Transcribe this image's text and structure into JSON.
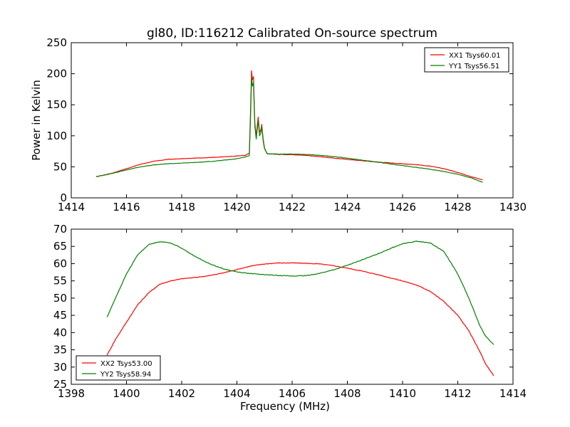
{
  "figure": {
    "title": "gl80, ID:116212 Calibrated On-source spectrum"
  },
  "chart_data": [
    {
      "type": "line",
      "title": "gl80, ID:116212 Calibrated On-source spectrum",
      "xlabel": "",
      "ylabel": "Power in Kelvin",
      "xlim": [
        1414,
        1430
      ],
      "ylim": [
        0,
        250
      ],
      "xticks": [
        "1414",
        "1416",
        "1418",
        "1420",
        "1422",
        "1424",
        "1426",
        "1428",
        "1430"
      ],
      "yticks": [
        "0",
        "50",
        "100",
        "150",
        "200",
        "250"
      ],
      "legend_position": "top-right",
      "grid": false,
      "series": [
        {
          "name": "XX1 Tsys60.01",
          "color": "#ff0000",
          "points": [
            [
              1414.9,
              34
            ],
            [
              1415.5,
              40
            ],
            [
              1416.0,
              47
            ],
            [
              1416.5,
              54
            ],
            [
              1417.0,
              59
            ],
            [
              1417.5,
              62
            ],
            [
              1418.0,
              63
            ],
            [
              1418.5,
              64
            ],
            [
              1419.0,
              65
            ],
            [
              1419.5,
              66
            ],
            [
              1420.0,
              67.5
            ],
            [
              1420.3,
              68.5
            ],
            [
              1420.45,
              72
            ],
            [
              1420.5,
              150
            ],
            [
              1420.53,
              205
            ],
            [
              1420.56,
              190
            ],
            [
              1420.6,
              195
            ],
            [
              1420.65,
              120
            ],
            [
              1420.7,
              100
            ],
            [
              1420.77,
              130
            ],
            [
              1420.82,
              105
            ],
            [
              1420.87,
              110
            ],
            [
              1420.9,
              118
            ],
            [
              1420.95,
              95
            ],
            [
              1421.0,
              80
            ],
            [
              1421.1,
              71
            ],
            [
              1421.5,
              70
            ],
            [
              1422.0,
              69.5
            ],
            [
              1422.5,
              68.5
            ],
            [
              1423.0,
              66.5
            ],
            [
              1423.5,
              64
            ],
            [
              1424.0,
              62
            ],
            [
              1424.5,
              60
            ],
            [
              1425.0,
              58
            ],
            [
              1425.5,
              56.5
            ],
            [
              1426.0,
              55
            ],
            [
              1426.5,
              53.5
            ],
            [
              1427.0,
              51
            ],
            [
              1427.5,
              47
            ],
            [
              1428.0,
              41
            ],
            [
              1428.5,
              34
            ],
            [
              1428.9,
              29
            ]
          ]
        },
        {
          "name": "YY1 Tsys56.51",
          "color": "#008000",
          "points": [
            [
              1414.9,
              34
            ],
            [
              1415.5,
              39.5
            ],
            [
              1416.0,
              45
            ],
            [
              1416.5,
              50
            ],
            [
              1417.0,
              53
            ],
            [
              1417.5,
              55
            ],
            [
              1418.0,
              56
            ],
            [
              1418.5,
              57
            ],
            [
              1419.0,
              58.5
            ],
            [
              1419.5,
              60.5
            ],
            [
              1420.0,
              63
            ],
            [
              1420.3,
              66
            ],
            [
              1420.45,
              68
            ],
            [
              1420.5,
              140
            ],
            [
              1420.53,
              195
            ],
            [
              1420.56,
              180
            ],
            [
              1420.6,
              185
            ],
            [
              1420.65,
              115
            ],
            [
              1420.7,
              95
            ],
            [
              1420.77,
              125
            ],
            [
              1420.82,
              100
            ],
            [
              1420.87,
              105
            ],
            [
              1420.9,
              115
            ],
            [
              1420.95,
              92
            ],
            [
              1421.0,
              79
            ],
            [
              1421.1,
              71
            ],
            [
              1421.5,
              70.5
            ],
            [
              1422.0,
              70.5
            ],
            [
              1422.5,
              70
            ],
            [
              1423.0,
              68.5
            ],
            [
              1423.5,
              66.5
            ],
            [
              1424.0,
              64
            ],
            [
              1424.5,
              61
            ],
            [
              1425.0,
              58
            ],
            [
              1425.5,
              55
            ],
            [
              1426.0,
              52
            ],
            [
              1426.5,
              49
            ],
            [
              1427.0,
              46
            ],
            [
              1427.5,
              42.5
            ],
            [
              1428.0,
              38
            ],
            [
              1428.5,
              32
            ],
            [
              1428.9,
              25
            ]
          ]
        }
      ]
    },
    {
      "type": "line",
      "title": "",
      "xlabel": "Frequency (MHz)",
      "ylabel": "",
      "xlim": [
        1398,
        1414
      ],
      "ylim": [
        25,
        70
      ],
      "xticks": [
        "1398",
        "1400",
        "1402",
        "1404",
        "1406",
        "1408",
        "1410",
        "1412",
        "1414"
      ],
      "yticks": [
        "25",
        "30",
        "35",
        "40",
        "45",
        "50",
        "55",
        "60",
        "65",
        "70"
      ],
      "legend_position": "bottom-left",
      "grid": false,
      "series": [
        {
          "name": "XX2 Tsys53.00",
          "color": "#ff0000",
          "points": [
            [
              1399.3,
              33.5
            ],
            [
              1399.6,
              38
            ],
            [
              1400.0,
              43
            ],
            [
              1400.4,
              48
            ],
            [
              1400.8,
              51.5
            ],
            [
              1401.2,
              54
            ],
            [
              1401.6,
              55
            ],
            [
              1402.0,
              55.6
            ],
            [
              1402.5,
              56
            ],
            [
              1403.0,
              56.5
            ],
            [
              1403.5,
              57.3
            ],
            [
              1404.0,
              58.3
            ],
            [
              1404.5,
              59.3
            ],
            [
              1405.0,
              59.9
            ],
            [
              1405.5,
              60.2
            ],
            [
              1406.0,
              60.2
            ],
            [
              1406.5,
              60.1
            ],
            [
              1407.0,
              59.9
            ],
            [
              1407.5,
              59.4
            ],
            [
              1408.0,
              58.7
            ],
            [
              1408.5,
              57.9
            ],
            [
              1409.0,
              57
            ],
            [
              1409.5,
              56
            ],
            [
              1410.0,
              55
            ],
            [
              1410.5,
              53.8
            ],
            [
              1411.0,
              52
            ],
            [
              1411.5,
              49
            ],
            [
              1412.0,
              45
            ],
            [
              1412.4,
              40.5
            ],
            [
              1412.8,
              34.5
            ],
            [
              1413.0,
              31
            ],
            [
              1413.3,
              27.5
            ]
          ]
        },
        {
          "name": "YY2 Tsys58.94",
          "color": "#008000",
          "points": [
            [
              1399.3,
              44.5
            ],
            [
              1399.6,
              50
            ],
            [
              1400.0,
              57
            ],
            [
              1400.4,
              62.5
            ],
            [
              1400.8,
              65.5
            ],
            [
              1401.2,
              66.4
            ],
            [
              1401.6,
              66
            ],
            [
              1402.0,
              64.5
            ],
            [
              1402.5,
              62
            ],
            [
              1403.0,
              60
            ],
            [
              1403.5,
              58.5
            ],
            [
              1404.0,
              57.6
            ],
            [
              1404.5,
              57.1
            ],
            [
              1405.0,
              56.8
            ],
            [
              1405.5,
              56.6
            ],
            [
              1406.0,
              56.4
            ],
            [
              1406.5,
              56.5
            ],
            [
              1407.0,
              57.2
            ],
            [
              1407.5,
              58.2
            ],
            [
              1408.0,
              59.5
            ],
            [
              1408.5,
              61
            ],
            [
              1409.0,
              62.5
            ],
            [
              1409.5,
              64.2
            ],
            [
              1410.0,
              65.8
            ],
            [
              1410.5,
              66.5
            ],
            [
              1411.0,
              66
            ],
            [
              1411.5,
              63.5
            ],
            [
              1412.0,
              57
            ],
            [
              1412.4,
              50
            ],
            [
              1412.8,
              42
            ],
            [
              1413.0,
              39
            ],
            [
              1413.3,
              36.5
            ]
          ]
        }
      ]
    }
  ]
}
